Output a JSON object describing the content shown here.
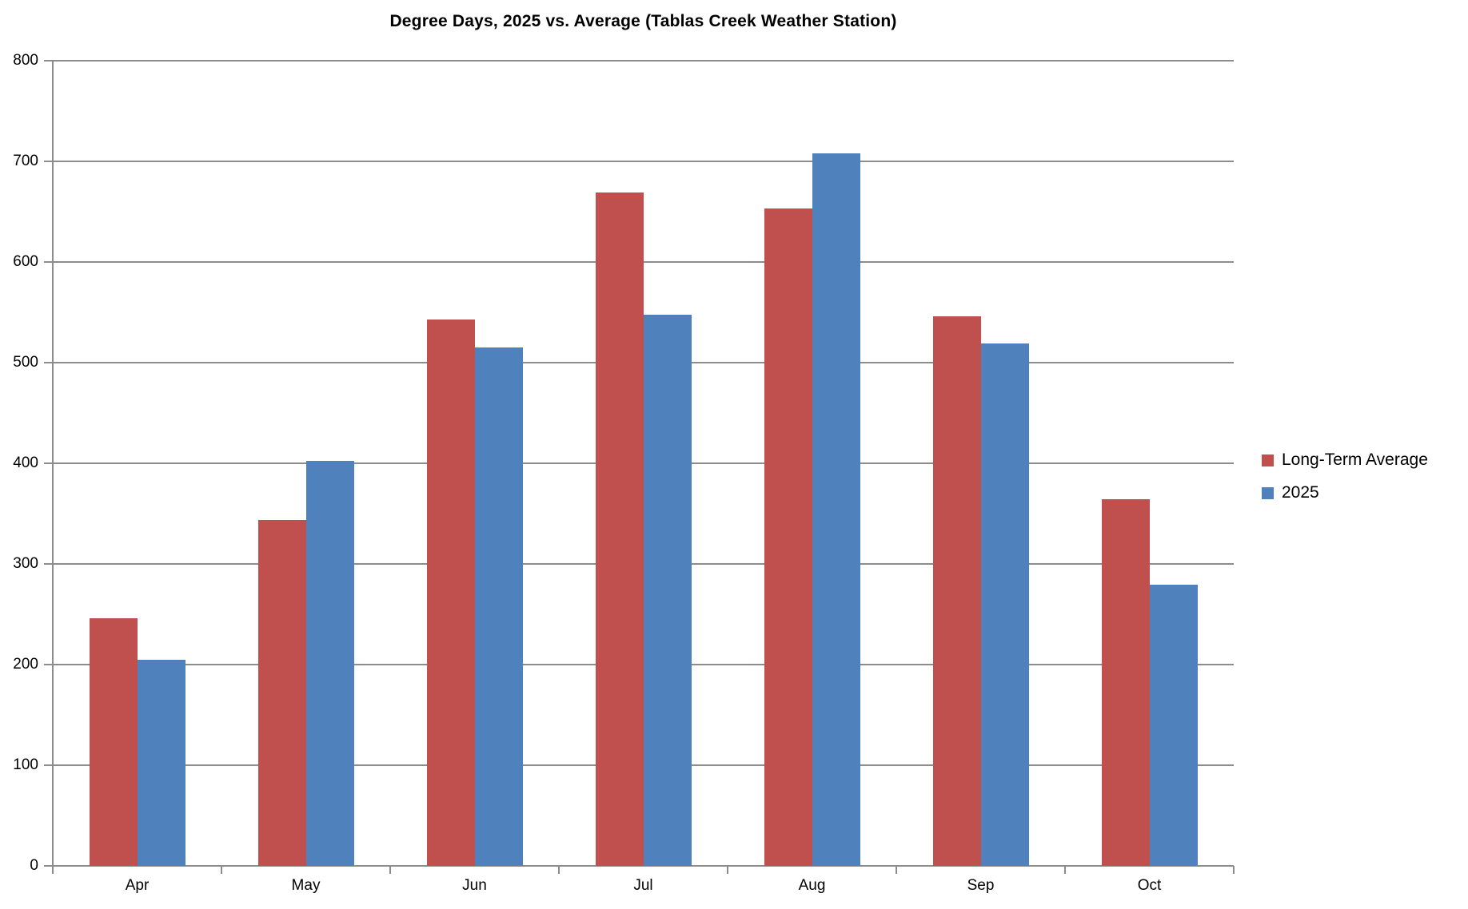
{
  "chart_title": "Degree Days, 2025 vs. Average (Tablas Creek Weather Station)",
  "chart_data": {
    "type": "bar",
    "title": "Degree Days, 2025 vs. Average (Tablas Creek Weather Station)",
    "categories": [
      "Apr",
      "May",
      "Jun",
      "Jul",
      "Aug",
      "Sep",
      "Oct"
    ],
    "series": [
      {
        "name": "Long-Term Average",
        "color": "#C0504D",
        "values": [
          246,
          344,
          543,
          669,
          653,
          546,
          364
        ]
      },
      {
        "name": "2025",
        "color": "#4F81BD",
        "values": [
          205,
          402,
          515,
          548,
          708,
          519,
          279
        ]
      }
    ],
    "xlabel": "",
    "ylabel": "",
    "ylim": [
      0,
      800
    ],
    "ytick_step": 100,
    "ytick_labels": [
      "0",
      "100",
      "200",
      "300",
      "400",
      "500",
      "600",
      "700",
      "800"
    ],
    "grid": true,
    "legend_position": "right",
    "colors": {
      "gridline": "#8C8C8C",
      "axis": "#8C8C8C",
      "text": "#000000",
      "background": "#FFFFFF"
    }
  }
}
